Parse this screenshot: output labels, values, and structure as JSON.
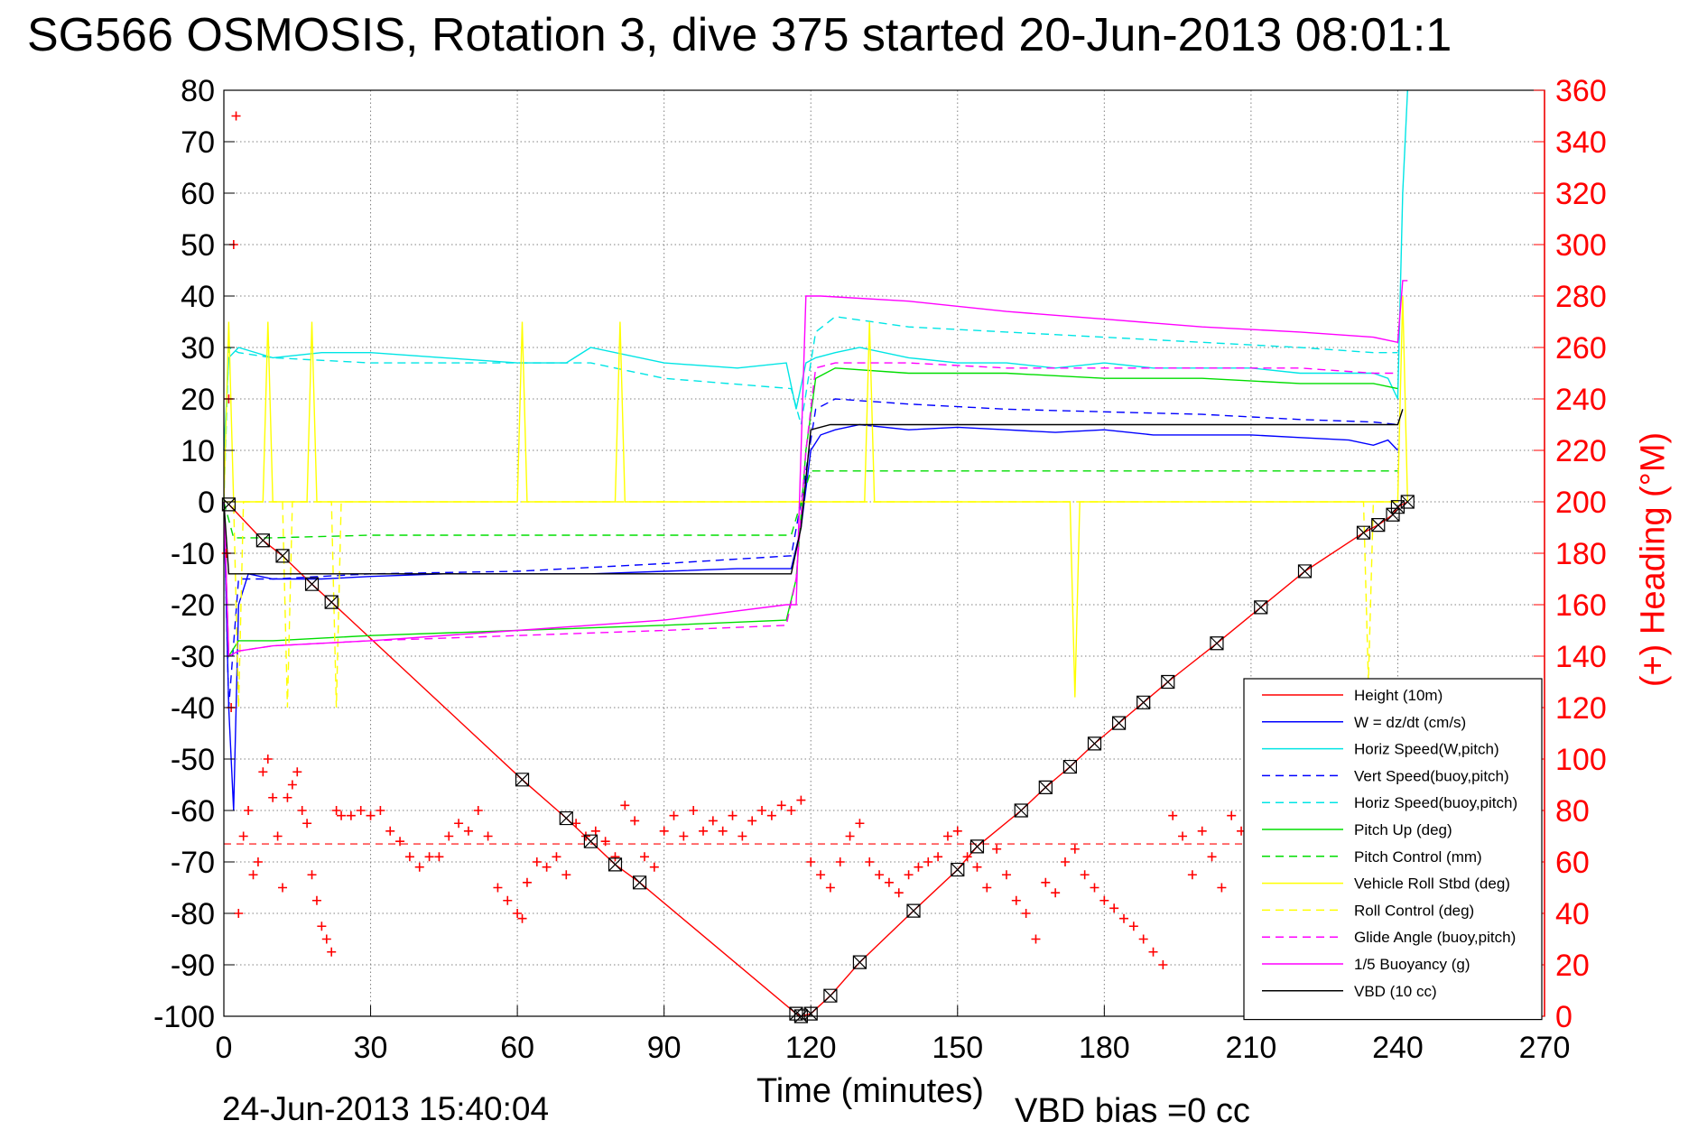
{
  "title": "SG566 OSMOSIS, Rotation 3, dive 375 started 20-Jun-2013 08:01:1",
  "footer": {
    "timestamp": "24-Jun-2013 15:40:04",
    "vbd_bias": "VBD bias =0 cc"
  },
  "chart_data": {
    "type": "line",
    "xlabel": "Time (minutes)",
    "ylabel": "",
    "ylabel_right": "(+) Heading (°M)",
    "xlim": [
      0,
      270
    ],
    "ylim": [
      -100,
      80
    ],
    "ylim_right": [
      0,
      360
    ],
    "xticks": [
      0,
      30,
      60,
      90,
      120,
      150,
      180,
      210,
      240,
      270
    ],
    "yticks": [
      -100,
      -90,
      -80,
      -70,
      -60,
      -50,
      -40,
      -30,
      -20,
      -10,
      0,
      10,
      20,
      30,
      40,
      50,
      60,
      70,
      80
    ],
    "yticks_right": [
      0,
      20,
      40,
      60,
      80,
      100,
      120,
      140,
      160,
      180,
      200,
      220,
      240,
      260,
      280,
      300,
      320,
      340,
      360
    ],
    "grid": true,
    "legend_position": "bottom-right",
    "series": [
      {
        "name": "Height (10m)",
        "color": "#ff0000",
        "style": "solid",
        "x": [
          1,
          8,
          12,
          18,
          22,
          61,
          70,
          75,
          80,
          85,
          117,
          118,
          120,
          124,
          130,
          141,
          150,
          154,
          163,
          168,
          173,
          178,
          183,
          188,
          193,
          203,
          212,
          221,
          233,
          236,
          239,
          240,
          242
        ],
        "y": [
          -0.5,
          -7.5,
          -10.5,
          -16,
          -19.5,
          -54,
          -61.5,
          -66,
          -70.5,
          -74,
          -99.5,
          -100,
          -99.5,
          -96,
          -89.5,
          -79.5,
          -71.5,
          -67,
          -60,
          -55.5,
          -51.5,
          -47,
          -43,
          -39,
          -35,
          -27.5,
          -20.5,
          -13.5,
          -6,
          -4.5,
          -2.5,
          -1,
          0
        ]
      },
      {
        "name": "W = dz/dt (cm/s)",
        "color": "#0000ff",
        "style": "solid",
        "x": [
          0,
          1,
          2,
          3,
          5,
          10,
          20,
          30,
          45,
          60,
          75,
          90,
          105,
          116,
          118,
          120,
          122,
          125,
          130,
          140,
          150,
          160,
          170,
          180,
          190,
          200,
          210,
          220,
          230,
          235,
          238,
          240
        ],
        "y": [
          0,
          -40,
          -60,
          -20,
          -14,
          -15,
          -15,
          -14.5,
          -14,
          -14,
          -14,
          -13.5,
          -13,
          -13,
          -5,
          10,
          13,
          14,
          15,
          14,
          14.5,
          14,
          13.5,
          14,
          13,
          13,
          13,
          12.5,
          12,
          11,
          12,
          10
        ]
      },
      {
        "name": "Horiz Speed(W,pitch)",
        "color": "#00e5e5",
        "style": "solid",
        "x": [
          0,
          1,
          3,
          10,
          20,
          30,
          45,
          60,
          70,
          75,
          90,
          105,
          115,
          117,
          119,
          121,
          125,
          130,
          140,
          150,
          160,
          170,
          180,
          190,
          200,
          210,
          220,
          230,
          235,
          238,
          240,
          241,
          242
        ],
        "y": [
          10,
          28,
          30,
          28,
          29,
          29,
          28,
          27,
          27,
          30,
          27,
          26,
          27,
          18,
          27,
          28,
          29,
          30,
          28,
          27,
          27,
          26,
          27,
          26,
          26,
          26,
          25,
          25,
          25,
          24,
          20,
          60,
          80
        ]
      },
      {
        "name": "Vert Speed(buoy,pitch)",
        "color": "#0000ff",
        "style": "dashed",
        "x": [
          0,
          1,
          3,
          10,
          30,
          60,
          90,
          116,
          118,
          121,
          125,
          140,
          160,
          180,
          200,
          220,
          235,
          240
        ],
        "y": [
          0,
          -40,
          -15,
          -15,
          -14,
          -13.5,
          -12,
          -10.5,
          0,
          18,
          20,
          19,
          18,
          17.5,
          17,
          16,
          15.5,
          15
        ]
      },
      {
        "name": "Horiz Speed(buoy,pitch)",
        "color": "#00e5e5",
        "style": "dashed",
        "x": [
          0,
          1,
          3,
          10,
          30,
          60,
          75,
          90,
          116,
          118,
          121,
          125,
          140,
          160,
          180,
          200,
          220,
          235,
          240
        ],
        "y": [
          0,
          30,
          29,
          28,
          27,
          27,
          27,
          24,
          22,
          15,
          33,
          36,
          34,
          33,
          32,
          31,
          30,
          29,
          29
        ]
      },
      {
        "name": "Pitch Up (deg)",
        "color": "#00dd00",
        "style": "solid",
        "x": [
          0,
          1,
          3,
          10,
          30,
          60,
          90,
          115,
          117,
          119,
          121,
          125,
          140,
          160,
          180,
          200,
          220,
          235,
          240
        ],
        "y": [
          0,
          -30,
          -27,
          -27,
          -26,
          -25,
          -24,
          -23,
          -15,
          10,
          24,
          26,
          25,
          25,
          24,
          24,
          23,
          23,
          22
        ]
      },
      {
        "name": "Pitch Control (mm)",
        "color": "#00dd00",
        "style": "dashed",
        "x": [
          0,
          2,
          10,
          30,
          60,
          90,
          116,
          118,
          120,
          140,
          180,
          220,
          240
        ],
        "y": [
          0,
          -7,
          -7,
          -6.5,
          -6.5,
          -6.5,
          -6.5,
          0,
          6,
          6,
          6,
          6,
          6
        ]
      },
      {
        "name": "Vehicle Roll Stbd (deg)",
        "color": "#ffff00",
        "style": "solid",
        "x": [
          0,
          1,
          2,
          3,
          8,
          9,
          10,
          17,
          18,
          19,
          60,
          61,
          62,
          80,
          81,
          82,
          116,
          118,
          120,
          131,
          132,
          133,
          173,
          174,
          175,
          240,
          241,
          242
        ],
        "y": [
          0,
          35,
          0,
          0,
          0,
          35,
          0,
          0,
          35,
          0,
          0,
          35,
          0,
          0,
          35,
          0,
          0,
          0,
          0,
          0,
          35,
          0,
          0,
          -38,
          0,
          0,
          40,
          0
        ]
      },
      {
        "name": "Roll Control (deg)",
        "color": "#ffff00",
        "style": "dashed",
        "x": [
          0,
          2,
          3,
          4,
          12,
          13,
          14,
          22,
          23,
          24,
          116,
          118,
          120,
          233,
          234,
          235,
          240
        ],
        "y": [
          0,
          0,
          -40,
          0,
          0,
          -40,
          0,
          0,
          -40,
          0,
          0,
          0,
          0,
          0,
          -35,
          0,
          0
        ]
      },
      {
        "name": "Glide Angle (buoy,pitch)",
        "color": "#ff00ff",
        "style": "dashed",
        "x": [
          0,
          1,
          3,
          10,
          30,
          60,
          90,
          115,
          117,
          119,
          121,
          125,
          140,
          160,
          180,
          200,
          220,
          235,
          240
        ],
        "y": [
          0,
          -30,
          -29,
          -28,
          -27,
          -26,
          -25,
          -24,
          -15,
          10,
          26,
          27,
          27,
          26,
          26,
          26,
          26,
          25,
          25
        ]
      },
      {
        "name": "1/5 Buoyancy (g)",
        "color": "#ff00ff",
        "style": "solid",
        "x": [
          0,
          1,
          3,
          10,
          30,
          60,
          90,
          115,
          117,
          119,
          120,
          122,
          140,
          160,
          180,
          200,
          220,
          235,
          240,
          241,
          242
        ],
        "y": [
          0,
          -30,
          -29,
          -28,
          -27,
          -25,
          -23,
          -20,
          -20,
          40,
          40,
          40,
          39,
          37,
          35.5,
          34,
          33,
          32,
          31,
          43,
          43
        ]
      },
      {
        "name": "VBD (10 cc)",
        "color": "#000000",
        "style": "solid",
        "x": [
          0,
          1,
          3,
          10,
          30,
          60,
          90,
          116,
          118,
          120,
          124,
          140,
          160,
          180,
          200,
          220,
          235,
          240,
          241
        ],
        "y": [
          0,
          -14,
          -14,
          -14,
          -14,
          -14,
          -14,
          -14,
          -5,
          14,
          15,
          15,
          15,
          15,
          15,
          15,
          15,
          15,
          18
        ]
      },
      {
        "name": "(+) Heading",
        "color": "#ff0000",
        "style": "markers",
        "axis": "right",
        "x": [
          0.5,
          1,
          1.5,
          2,
          2.5,
          3,
          4,
          5,
          6,
          7,
          8,
          9,
          10,
          11,
          12,
          13,
          14,
          15,
          16,
          17,
          18,
          19,
          20,
          21,
          22,
          23,
          24,
          26,
          28,
          30,
          32,
          34,
          36,
          38,
          40,
          42,
          44,
          46,
          48,
          50,
          52,
          54,
          56,
          58,
          60,
          61,
          62,
          64,
          66,
          68,
          70,
          72,
          74,
          76,
          78,
          80,
          82,
          84,
          86,
          88,
          90,
          92,
          94,
          96,
          98,
          100,
          102,
          104,
          106,
          108,
          110,
          112,
          114,
          116,
          118,
          120,
          122,
          124,
          126,
          128,
          130,
          132,
          134,
          136,
          138,
          140,
          142,
          144,
          146,
          148,
          150,
          152,
          154,
          156,
          158,
          160,
          162,
          164,
          166,
          168,
          170,
          172,
          174,
          176,
          178,
          180,
          182,
          184,
          186,
          188,
          190,
          192,
          194,
          196,
          198,
          200,
          202,
          204,
          206,
          208,
          210,
          212,
          214,
          216,
          218,
          220,
          222,
          224,
          226,
          228,
          230
        ],
        "y": [
          180,
          240,
          120,
          300,
          350,
          40,
          70,
          80,
          55,
          60,
          95,
          100,
          85,
          70,
          50,
          85,
          90,
          95,
          80,
          75,
          55,
          45,
          35,
          30,
          25,
          80,
          78,
          78,
          80,
          78,
          80,
          72,
          68,
          62,
          58,
          62,
          62,
          70,
          75,
          72,
          80,
          70,
          50,
          45,
          40,
          38,
          52,
          60,
          58,
          62,
          55,
          75,
          70,
          72,
          68,
          62,
          82,
          76,
          62,
          58,
          72,
          78,
          70,
          80,
          72,
          76,
          72,
          78,
          70,
          76,
          80,
          78,
          82,
          80,
          84,
          60,
          55,
          50,
          60,
          70,
          75,
          60,
          55,
          52,
          48,
          55,
          58,
          60,
          62,
          70,
          72,
          62,
          58,
          50,
          65,
          55,
          45,
          40,
          30,
          52,
          48,
          60,
          65,
          55,
          50,
          45,
          42,
          38,
          35,
          30,
          25,
          20,
          78,
          70,
          55,
          72,
          62,
          50,
          78,
          72,
          65,
          55,
          50,
          45,
          70,
          62,
          55,
          72,
          60,
          55,
          50
        ]
      }
    ],
    "reference_line": {
      "axis": "right",
      "y": 67,
      "color": "#ff0000",
      "style": "dashed"
    },
    "height_markers": {
      "x": [
        1,
        8,
        12,
        18,
        22,
        61,
        70,
        75,
        80,
        85,
        117,
        118,
        120,
        124,
        130,
        141,
        150,
        154,
        163,
        168,
        173,
        178,
        183,
        188,
        193,
        203,
        212,
        221,
        233,
        236,
        239,
        240,
        242
      ],
      "color": "#000000"
    }
  }
}
